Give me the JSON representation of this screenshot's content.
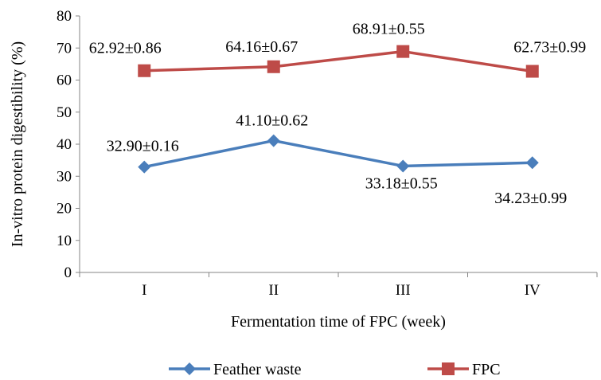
{
  "chart_data": {
    "type": "line",
    "categories": [
      "I",
      "II",
      "III",
      "IV"
    ],
    "xlabel": "Fermentation time of FPC (week)",
    "ylabel": "In-vitro protein digestibility (%)",
    "ylim": [
      0,
      80
    ],
    "yticks": [
      0,
      10,
      20,
      30,
      40,
      50,
      60,
      70,
      80
    ],
    "grid": false,
    "legend_position": "bottom",
    "series": [
      {
        "name": "Feather waste",
        "values": [
          32.9,
          41.1,
          33.18,
          34.23
        ],
        "labels": [
          "32.90±0.16",
          "41.10±0.62",
          "33.18±0.55",
          "34.23±0.99"
        ],
        "color": "#4a7ebb",
        "marker": "diamond"
      },
      {
        "name": "FPC",
        "values": [
          62.92,
          64.16,
          68.91,
          62.73
        ],
        "labels": [
          "62.92±0.86",
          "64.16±0.67",
          "68.91±0.55",
          "62.73±0.99"
        ],
        "color": "#be4b48",
        "marker": "square"
      }
    ]
  }
}
